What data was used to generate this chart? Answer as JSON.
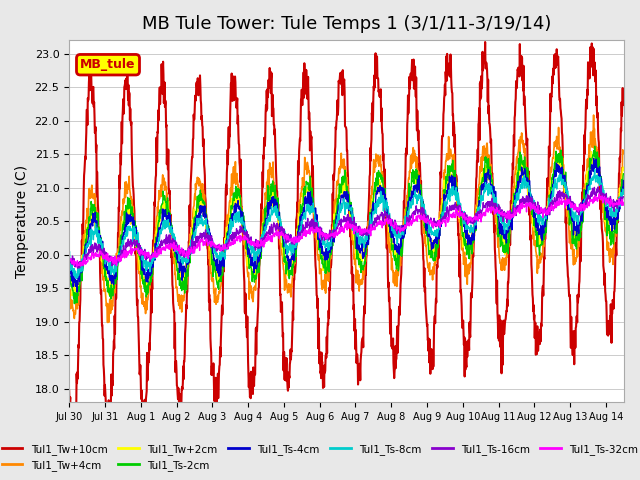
{
  "title": "MB Tule Tower: Tule Temps 1 (3/1/11-3/19/14)",
  "ylabel": "Temperature (C)",
  "xlabel": "",
  "ylim": [
    17.8,
    23.2
  ],
  "yticks": [
    18.0,
    18.5,
    19.0,
    19.5,
    20.0,
    20.5,
    21.0,
    21.5,
    22.0,
    22.5,
    23.0
  ],
  "xlim_days": [
    0,
    15.5
  ],
  "xtick_labels": [
    "Jul 30",
    "Jul 31",
    "Aug 1",
    "Aug 2",
    "Aug 3",
    "Aug 4",
    "Aug 5",
    "Aug 6",
    "Aug 7",
    "Aug 8",
    "Aug 9",
    "Aug 10",
    "Aug 11",
    "Aug 12",
    "Aug 13",
    "Aug 14"
  ],
  "legend_label": "MB_tule",
  "series": {
    "Tul1_Tw+10cm": {
      "color": "#cc0000",
      "lw": 1.5
    },
    "Tul1_Tw+4cm": {
      "color": "#ff8800",
      "lw": 1.2
    },
    "Tul1_Tw+2cm": {
      "color": "#ffff00",
      "lw": 1.0
    },
    "Tul1_Ts-2cm": {
      "color": "#00cc00",
      "lw": 1.0
    },
    "Tul1_Ts-4cm": {
      "color": "#0000cc",
      "lw": 1.0
    },
    "Tul1_Ts-8cm": {
      "color": "#00cccc",
      "lw": 1.0
    },
    "Tul1_Ts-16cm": {
      "color": "#8800cc",
      "lw": 1.0
    },
    "Tul1_Ts-32cm": {
      "color": "#ff00ff",
      "lw": 1.0
    }
  },
  "bg_color": "#e8e8e8",
  "plot_bg_color": "#ffffff",
  "title_fontsize": 13,
  "label_fontsize": 10,
  "tick_fontsize": 8
}
